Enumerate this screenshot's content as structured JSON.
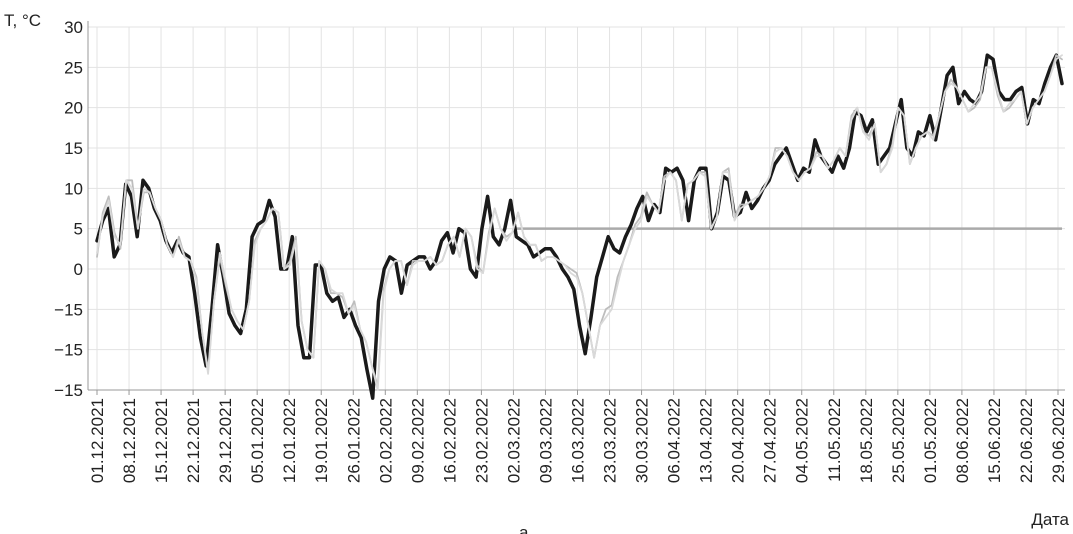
{
  "chart_data": {
    "type": "line",
    "ylabel": "T, °C",
    "xlabel": "Дата",
    "caption": "а",
    "y_ticks": [
      30,
      25,
      20,
      15,
      10,
      5,
      0,
      "−15",
      "−15",
      "−15"
    ],
    "ylim": [
      -15,
      30
    ],
    "grid": true,
    "x_ticks": [
      "01.12.2021",
      "08.12.2021",
      "15.12.2021",
      "22.12.2021",
      "29.12.2021",
      "05.01.2022",
      "12.01.2022",
      "19.01.2022",
      "26.01.2022",
      "02.02.2022",
      "09.02.2022",
      "16.02.2022",
      "23.02.2022",
      "02.03.2022",
      "09.03.2022",
      "16.03.2022",
      "23.03.2022",
      "30.03.2022",
      "06.04.2022",
      "13.04.2022",
      "20.04.2022",
      "27.04.2022",
      "04.05.2022",
      "11.05.2022",
      "18.05.2022",
      "25.05.2022",
      "01.05.2022",
      "08.06.2022",
      "15.06.2022",
      "22.06.2022",
      "29.06.2022"
    ],
    "threshold": {
      "value": 5,
      "x_start": "02.03.2022",
      "color": "#aaaaaa"
    },
    "series": [
      {
        "color": "#1a1a1a",
        "width": 3.5,
        "values": [
          3.5,
          6,
          7.5,
          1.5,
          3,
          10.5,
          9,
          4,
          11,
          10,
          7.5,
          6,
          3.5,
          2,
          3.5,
          2,
          1.5,
          -3,
          -8.5,
          -12,
          -5,
          3,
          -1,
          -5.5,
          -7,
          -8,
          -5,
          4,
          5.5,
          6,
          8.5,
          6.5,
          0,
          0,
          4,
          -7,
          -11,
          -11,
          0.5,
          0.5,
          -3,
          -4,
          -3.5,
          -6,
          -5,
          -7,
          -8.5,
          -12.5,
          -16,
          -4,
          0,
          1.5,
          1,
          -3,
          0.5,
          1,
          1.5,
          1.5,
          0,
          1,
          3.5,
          4.5,
          2,
          5,
          4.5,
          0,
          -1,
          5,
          9,
          4,
          3,
          5,
          8.5,
          4,
          3.5,
          3,
          1.5,
          2,
          2.5,
          2.5,
          1.5,
          0,
          -1,
          -2.5,
          -7,
          -10.5,
          -6,
          -1,
          1.5,
          4,
          2.5,
          2,
          4,
          5.5,
          7.5,
          9,
          6,
          8,
          7,
          12.5,
          12,
          12.5,
          11,
          6,
          11,
          12.5,
          12.5,
          5,
          7,
          11.5,
          11,
          6.5,
          7,
          9.5,
          7.5,
          8.5,
          10,
          11,
          13,
          14,
          15,
          13,
          11,
          12.5,
          12,
          16,
          14,
          13,
          12,
          14,
          12.5,
          15,
          19.5,
          19,
          17,
          18.5,
          13,
          14,
          15,
          18,
          21,
          15,
          14,
          17,
          16.5,
          19,
          16,
          20,
          24,
          25,
          20.5,
          22,
          21,
          20.5,
          22,
          26.5,
          26,
          22,
          21,
          21,
          22,
          22.5,
          18,
          21,
          20.5,
          23,
          25,
          26.5,
          23
        ]
      },
      {
        "color": "#bdbdbd",
        "width": 1.8,
        "values": [
          1.5,
          7,
          9,
          4.5,
          2.5,
          11,
          11,
          5,
          9.5,
          9.5,
          7.5,
          6,
          3,
          1.5,
          4,
          1.5,
          1,
          -1,
          -8,
          -12.5,
          -4,
          1.5,
          -2,
          -5,
          -6.5,
          -7.5,
          -4,
          3.5,
          5,
          6,
          7.5,
          7,
          0,
          1,
          4,
          -6.5,
          -10,
          -11,
          1,
          0,
          -3,
          -3,
          -3.5,
          -5.5,
          -4,
          -7.5,
          -9,
          -12,
          -14.5,
          -2.5,
          0,
          1,
          1,
          -2,
          1,
          1,
          1,
          1.5,
          0.5,
          1,
          3,
          4,
          1.5,
          5,
          4,
          0.5,
          -0.5,
          4.5,
          7.5,
          5,
          4,
          4.5,
          7,
          4,
          3,
          3,
          1,
          1.5,
          1.5,
          1,
          0.5,
          0,
          -0.5,
          -3,
          -7,
          -11,
          -7,
          -5,
          -4.5,
          -1,
          1,
          3,
          5.5,
          6.5,
          9.5,
          8,
          7,
          11.5,
          12,
          11,
          6,
          10.5,
          11,
          12,
          12,
          5,
          6.5,
          12,
          12.5,
          6.5,
          8,
          8,
          8.5,
          9,
          10,
          11.5,
          15,
          15,
          14,
          12,
          11,
          12,
          12.5,
          14.5,
          14,
          12.5,
          13.5,
          15,
          14,
          19,
          20,
          17,
          16.5,
          18,
          12,
          13,
          15.5,
          20,
          19,
          13,
          15,
          16.5,
          17,
          16.5,
          19,
          22,
          23.5,
          22.5,
          21,
          19.5,
          20,
          21,
          25,
          25,
          21.5,
          19.5,
          20,
          21,
          22,
          18,
          20,
          21,
          22,
          24,
          26.5,
          26
        ]
      },
      {
        "color": "#d9d9d9",
        "width": 1.8,
        "values": [
          2,
          6.5,
          8.5,
          4,
          3,
          11,
          10,
          5,
          10,
          9.5,
          7.5,
          6,
          3,
          1.5,
          3.5,
          1.5,
          1,
          -1.5,
          -8,
          -13,
          -4,
          2,
          -1.5,
          -5,
          -6.5,
          -7.5,
          -4,
          3,
          5,
          6,
          7.5,
          7,
          0,
          0.5,
          3.5,
          -6.5,
          -10,
          -11,
          1,
          0,
          -2.5,
          -3,
          -3,
          -5.5,
          -4.5,
          -7.5,
          -9,
          -12,
          -15,
          -3,
          0,
          1,
          1,
          -2,
          0.5,
          1,
          1,
          1.5,
          0.5,
          1,
          3,
          4,
          1.5,
          5,
          4,
          0,
          -0.5,
          4,
          7.5,
          5,
          3.5,
          4.5,
          7,
          4,
          3,
          3,
          1,
          1.5,
          1.5,
          1,
          0.5,
          -0.5,
          -1,
          -3,
          -7,
          -11,
          -7,
          -6,
          -5,
          -2,
          1,
          3,
          5,
          6,
          9,
          8,
          7,
          11,
          12,
          11,
          6,
          10.5,
          11,
          12,
          11.5,
          5,
          6.5,
          12,
          12,
          6,
          7.5,
          8,
          8.5,
          9,
          10,
          11.5,
          14.5,
          15,
          14,
          12,
          11,
          12,
          12.5,
          14,
          14,
          12.5,
          13.5,
          15,
          14,
          18.5,
          20,
          17,
          16,
          18,
          12,
          13,
          15,
          20,
          19,
          13,
          15,
          16.5,
          17,
          16,
          19,
          22,
          23,
          22.5,
          21,
          19.5,
          20.5,
          21.5,
          25,
          25,
          22,
          19.5,
          20.5,
          21,
          22,
          18,
          20,
          21,
          22,
          24,
          26,
          26.5
        ]
      }
    ]
  }
}
